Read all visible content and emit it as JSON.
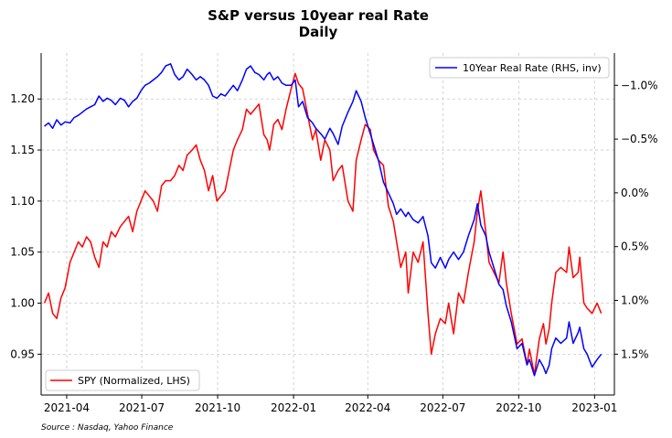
{
  "chart_data": {
    "type": "line",
    "title": "S&P versus 10year real Rate",
    "subtitle": "Daily",
    "source": "Source : Nasdaq, Yahoo Finance",
    "x_ticks": [
      "2021-04",
      "2021-07",
      "2021-10",
      "2022-01",
      "2022-04",
      "2022-07",
      "2022-10",
      "2023-01"
    ],
    "x_range": [
      "2021-03-01",
      "2023-01-25"
    ],
    "y_left": {
      "ticks": [
        "0.95",
        "1.00",
        "1.05",
        "1.10",
        "1.15",
        "1.20"
      ],
      "range": [
        0.91,
        1.245
      ]
    },
    "y_right": {
      "inverted": true,
      "ticks": [
        "−1.0%",
        "−0.5%",
        "0.0%",
        "0.5%",
        "1.0%",
        "1.5%"
      ],
      "tick_values": [
        -1.0,
        -0.5,
        0.0,
        0.5,
        1.0,
        1.5
      ],
      "range": [
        -1.3,
        1.88
      ]
    },
    "grid": true,
    "legend_left": {
      "position": "bottom-left",
      "label": "SPY (Normalized, LHS)",
      "color": "#ff0000"
    },
    "legend_right": {
      "position": "top-right",
      "label": "10Year Real Rate (RHS, inv)",
      "color": "#0000ff"
    },
    "series": [
      {
        "name": "SPY (Normalized, LHS)",
        "axis": "left",
        "color": "#ff0000",
        "points": [
          [
            "2021-03-05",
            1.0
          ],
          [
            "2021-03-10",
            1.01
          ],
          [
            "2021-03-15",
            0.99
          ],
          [
            "2021-03-20",
            0.985
          ],
          [
            "2021-03-25",
            1.005
          ],
          [
            "2021-03-30",
            1.015
          ],
          [
            "2021-04-05",
            1.04
          ],
          [
            "2021-04-10",
            1.05
          ],
          [
            "2021-04-15",
            1.06
          ],
          [
            "2021-04-20",
            1.055
          ],
          [
            "2021-04-25",
            1.065
          ],
          [
            "2021-04-30",
            1.06
          ],
          [
            "2021-05-05",
            1.045
          ],
          [
            "2021-05-10",
            1.035
          ],
          [
            "2021-05-15",
            1.06
          ],
          [
            "2021-05-20",
            1.055
          ],
          [
            "2021-05-25",
            1.07
          ],
          [
            "2021-05-30",
            1.065
          ],
          [
            "2021-06-05",
            1.075
          ],
          [
            "2021-06-10",
            1.08
          ],
          [
            "2021-06-15",
            1.085
          ],
          [
            "2021-06-20",
            1.07
          ],
          [
            "2021-06-25",
            1.09
          ],
          [
            "2021-06-30",
            1.1
          ],
          [
            "2021-07-05",
            1.11
          ],
          [
            "2021-07-10",
            1.105
          ],
          [
            "2021-07-15",
            1.1
          ],
          [
            "2021-07-20",
            1.09
          ],
          [
            "2021-07-25",
            1.115
          ],
          [
            "2021-07-30",
            1.12
          ],
          [
            "2021-08-05",
            1.12
          ],
          [
            "2021-08-10",
            1.125
          ],
          [
            "2021-08-15",
            1.135
          ],
          [
            "2021-08-20",
            1.13
          ],
          [
            "2021-08-25",
            1.145
          ],
          [
            "2021-08-31",
            1.15
          ],
          [
            "2021-09-05",
            1.155
          ],
          [
            "2021-09-10",
            1.14
          ],
          [
            "2021-09-15",
            1.13
          ],
          [
            "2021-09-20",
            1.11
          ],
          [
            "2021-09-25",
            1.125
          ],
          [
            "2021-09-30",
            1.1
          ],
          [
            "2021-10-05",
            1.105
          ],
          [
            "2021-10-10",
            1.11
          ],
          [
            "2021-10-15",
            1.13
          ],
          [
            "2021-10-20",
            1.15
          ],
          [
            "2021-10-25",
            1.16
          ],
          [
            "2021-10-31",
            1.17
          ],
          [
            "2021-11-05",
            1.19
          ],
          [
            "2021-11-10",
            1.185
          ],
          [
            "2021-11-15",
            1.19
          ],
          [
            "2021-11-20",
            1.195
          ],
          [
            "2021-11-26",
            1.165
          ],
          [
            "2021-11-30",
            1.16
          ],
          [
            "2021-12-03",
            1.15
          ],
          [
            "2021-12-08",
            1.175
          ],
          [
            "2021-12-13",
            1.18
          ],
          [
            "2021-12-18",
            1.17
          ],
          [
            "2021-12-23",
            1.19
          ],
          [
            "2021-12-29",
            1.21
          ],
          [
            "2022-01-03",
            1.225
          ],
          [
            "2022-01-07",
            1.215
          ],
          [
            "2022-01-12",
            1.21
          ],
          [
            "2022-01-18",
            1.185
          ],
          [
            "2022-01-24",
            1.16
          ],
          [
            "2022-01-28",
            1.17
          ],
          [
            "2022-02-03",
            1.14
          ],
          [
            "2022-02-08",
            1.16
          ],
          [
            "2022-02-14",
            1.15
          ],
          [
            "2022-02-18",
            1.12
          ],
          [
            "2022-02-24",
            1.13
          ],
          [
            "2022-03-01",
            1.135
          ],
          [
            "2022-03-08",
            1.1
          ],
          [
            "2022-03-14",
            1.09
          ],
          [
            "2022-03-18",
            1.14
          ],
          [
            "2022-03-24",
            1.16
          ],
          [
            "2022-03-29",
            1.175
          ],
          [
            "2022-04-04",
            1.17
          ],
          [
            "2022-04-08",
            1.15
          ],
          [
            "2022-04-14",
            1.14
          ],
          [
            "2022-04-20",
            1.135
          ],
          [
            "2022-04-26",
            1.095
          ],
          [
            "2022-05-02",
            1.08
          ],
          [
            "2022-05-06",
            1.06
          ],
          [
            "2022-05-11",
            1.035
          ],
          [
            "2022-05-17",
            1.05
          ],
          [
            "2022-05-20",
            1.01
          ],
          [
            "2022-05-26",
            1.05
          ],
          [
            "2022-06-01",
            1.04
          ],
          [
            "2022-06-07",
            1.06
          ],
          [
            "2022-06-13",
            0.99
          ],
          [
            "2022-06-17",
            0.95
          ],
          [
            "2022-06-22",
            0.97
          ],
          [
            "2022-06-28",
            0.985
          ],
          [
            "2022-07-04",
            0.98
          ],
          [
            "2022-07-08",
            1.0
          ],
          [
            "2022-07-14",
            0.97
          ],
          [
            "2022-07-20",
            1.01
          ],
          [
            "2022-07-26",
            1.0
          ],
          [
            "2022-08-01",
            1.03
          ],
          [
            "2022-08-08",
            1.06
          ],
          [
            "2022-08-12",
            1.09
          ],
          [
            "2022-08-16",
            1.11
          ],
          [
            "2022-08-22",
            1.07
          ],
          [
            "2022-08-26",
            1.04
          ],
          [
            "2022-09-01",
            1.03
          ],
          [
            "2022-09-07",
            1.02
          ],
          [
            "2022-09-12",
            1.05
          ],
          [
            "2022-09-16",
            1.02
          ],
          [
            "2022-09-22",
            0.99
          ],
          [
            "2022-09-29",
            0.96
          ],
          [
            "2022-10-05",
            0.965
          ],
          [
            "2022-10-11",
            0.94
          ],
          [
            "2022-10-14",
            0.955
          ],
          [
            "2022-10-20",
            0.93
          ],
          [
            "2022-10-26",
            0.965
          ],
          [
            "2022-10-31",
            0.98
          ],
          [
            "2022-11-03",
            0.96
          ],
          [
            "2022-11-07",
            0.975
          ],
          [
            "2022-11-10",
            1.0
          ],
          [
            "2022-11-15",
            1.03
          ],
          [
            "2022-11-21",
            1.035
          ],
          [
            "2022-11-28",
            1.03
          ],
          [
            "2022-12-01",
            1.055
          ],
          [
            "2022-12-06",
            1.025
          ],
          [
            "2022-12-12",
            1.03
          ],
          [
            "2022-12-14",
            1.045
          ],
          [
            "2022-12-19",
            1.0
          ],
          [
            "2022-12-23",
            0.995
          ],
          [
            "2022-12-29",
            0.99
          ],
          [
            "2023-01-04",
            1.0
          ],
          [
            "2023-01-09",
            0.99
          ]
        ]
      },
      {
        "name": "10Year Real Rate (RHS, inv)",
        "axis": "right",
        "color": "#0000ff",
        "points": [
          [
            "2021-03-05",
            -0.62
          ],
          [
            "2021-03-10",
            -0.65
          ],
          [
            "2021-03-15",
            -0.6
          ],
          [
            "2021-03-20",
            -0.68
          ],
          [
            "2021-03-25",
            -0.63
          ],
          [
            "2021-03-30",
            -0.66
          ],
          [
            "2021-04-05",
            -0.65
          ],
          [
            "2021-04-10",
            -0.7
          ],
          [
            "2021-04-15",
            -0.72
          ],
          [
            "2021-04-20",
            -0.75
          ],
          [
            "2021-04-25",
            -0.78
          ],
          [
            "2021-04-30",
            -0.8
          ],
          [
            "2021-05-05",
            -0.82
          ],
          [
            "2021-05-10",
            -0.9
          ],
          [
            "2021-05-15",
            -0.85
          ],
          [
            "2021-05-20",
            -0.88
          ],
          [
            "2021-05-25",
            -0.86
          ],
          [
            "2021-05-30",
            -0.82
          ],
          [
            "2021-06-05",
            -0.88
          ],
          [
            "2021-06-10",
            -0.86
          ],
          [
            "2021-06-15",
            -0.8
          ],
          [
            "2021-06-20",
            -0.85
          ],
          [
            "2021-06-25",
            -0.88
          ],
          [
            "2021-06-30",
            -0.95
          ],
          [
            "2021-07-05",
            -1.0
          ],
          [
            "2021-07-10",
            -1.02
          ],
          [
            "2021-07-15",
            -1.05
          ],
          [
            "2021-07-20",
            -1.08
          ],
          [
            "2021-07-25",
            -1.12
          ],
          [
            "2021-07-30",
            -1.18
          ],
          [
            "2021-08-05",
            -1.2
          ],
          [
            "2021-08-10",
            -1.1
          ],
          [
            "2021-08-15",
            -1.05
          ],
          [
            "2021-08-20",
            -1.08
          ],
          [
            "2021-08-25",
            -1.15
          ],
          [
            "2021-08-31",
            -1.1
          ],
          [
            "2021-09-05",
            -1.05
          ],
          [
            "2021-09-10",
            -1.08
          ],
          [
            "2021-09-15",
            -1.05
          ],
          [
            "2021-09-20",
            -1.0
          ],
          [
            "2021-09-25",
            -0.9
          ],
          [
            "2021-09-30",
            -0.88
          ],
          [
            "2021-10-05",
            -0.92
          ],
          [
            "2021-10-10",
            -0.9
          ],
          [
            "2021-10-15",
            -0.95
          ],
          [
            "2021-10-20",
            -1.0
          ],
          [
            "2021-10-25",
            -0.95
          ],
          [
            "2021-10-31",
            -1.05
          ],
          [
            "2021-11-05",
            -1.15
          ],
          [
            "2021-11-10",
            -1.18
          ],
          [
            "2021-11-15",
            -1.12
          ],
          [
            "2021-11-20",
            -1.1
          ],
          [
            "2021-11-26",
            -1.05
          ],
          [
            "2021-11-30",
            -1.1
          ],
          [
            "2021-12-03",
            -1.12
          ],
          [
            "2021-12-08",
            -1.05
          ],
          [
            "2021-12-13",
            -1.08
          ],
          [
            "2021-12-18",
            -1.02
          ],
          [
            "2021-12-23",
            -1.0
          ],
          [
            "2021-12-29",
            -1.0
          ],
          [
            "2022-01-03",
            -1.05
          ],
          [
            "2022-01-07",
            -0.8
          ],
          [
            "2022-01-12",
            -0.85
          ],
          [
            "2022-01-18",
            -0.7
          ],
          [
            "2022-01-24",
            -0.65
          ],
          [
            "2022-01-28",
            -0.6
          ],
          [
            "2022-02-03",
            -0.55
          ],
          [
            "2022-02-08",
            -0.5
          ],
          [
            "2022-02-14",
            -0.6
          ],
          [
            "2022-02-18",
            -0.55
          ],
          [
            "2022-02-24",
            -0.45
          ],
          [
            "2022-03-01",
            -0.62
          ],
          [
            "2022-03-08",
            -0.75
          ],
          [
            "2022-03-14",
            -0.85
          ],
          [
            "2022-03-18",
            -0.95
          ],
          [
            "2022-03-24",
            -0.85
          ],
          [
            "2022-03-29",
            -0.7
          ],
          [
            "2022-04-04",
            -0.55
          ],
          [
            "2022-04-08",
            -0.45
          ],
          [
            "2022-04-14",
            -0.3
          ],
          [
            "2022-04-20",
            -0.1
          ],
          [
            "2022-04-26",
            0.0
          ],
          [
            "2022-05-02",
            0.1
          ],
          [
            "2022-05-06",
            0.2
          ],
          [
            "2022-05-11",
            0.15
          ],
          [
            "2022-05-17",
            0.22
          ],
          [
            "2022-05-20",
            0.18
          ],
          [
            "2022-05-26",
            0.25
          ],
          [
            "2022-06-01",
            0.28
          ],
          [
            "2022-06-07",
            0.22
          ],
          [
            "2022-06-13",
            0.4
          ],
          [
            "2022-06-17",
            0.65
          ],
          [
            "2022-06-22",
            0.7
          ],
          [
            "2022-06-28",
            0.6
          ],
          [
            "2022-07-04",
            0.7
          ],
          [
            "2022-07-08",
            0.62
          ],
          [
            "2022-07-14",
            0.55
          ],
          [
            "2022-07-20",
            0.62
          ],
          [
            "2022-07-26",
            0.55
          ],
          [
            "2022-08-01",
            0.4
          ],
          [
            "2022-08-08",
            0.25
          ],
          [
            "2022-08-12",
            0.1
          ],
          [
            "2022-08-16",
            0.3
          ],
          [
            "2022-08-22",
            0.4
          ],
          [
            "2022-08-26",
            0.55
          ],
          [
            "2022-09-01",
            0.7
          ],
          [
            "2022-09-07",
            0.85
          ],
          [
            "2022-09-12",
            0.9
          ],
          [
            "2022-09-16",
            1.05
          ],
          [
            "2022-09-22",
            1.2
          ],
          [
            "2022-09-29",
            1.45
          ],
          [
            "2022-10-05",
            1.4
          ],
          [
            "2022-10-11",
            1.6
          ],
          [
            "2022-10-14",
            1.55
          ],
          [
            "2022-10-20",
            1.7
          ],
          [
            "2022-10-26",
            1.55
          ],
          [
            "2022-10-31",
            1.62
          ],
          [
            "2022-11-03",
            1.68
          ],
          [
            "2022-11-07",
            1.6
          ],
          [
            "2022-11-10",
            1.45
          ],
          [
            "2022-11-15",
            1.35
          ],
          [
            "2022-11-21",
            1.4
          ],
          [
            "2022-11-28",
            1.35
          ],
          [
            "2022-12-01",
            1.2
          ],
          [
            "2022-12-06",
            1.4
          ],
          [
            "2022-12-12",
            1.3
          ],
          [
            "2022-12-14",
            1.25
          ],
          [
            "2022-12-19",
            1.45
          ],
          [
            "2022-12-23",
            1.5
          ],
          [
            "2022-12-29",
            1.62
          ],
          [
            "2023-01-04",
            1.55
          ],
          [
            "2023-01-09",
            1.5
          ]
        ]
      }
    ]
  }
}
